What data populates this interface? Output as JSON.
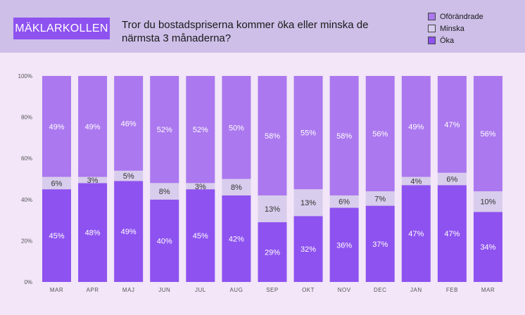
{
  "header": {
    "brand": "MÄKLARKOLLEN",
    "title": "Tror du bostadspriserna kommer öka eller minska de närmsta 3 månaderna?"
  },
  "chart_data": {
    "type": "bar",
    "stacked": true,
    "title": "Tror du bostadspriserna kommer öka eller minska de närmsta 3 månaderna?",
    "categories": [
      "MAR",
      "APR",
      "MAJ",
      "JUN",
      "JUL",
      "AUG",
      "SEP",
      "OKT",
      "NOV",
      "DEC",
      "JAN",
      "FEB",
      "MAR"
    ],
    "yticks": [
      "0%",
      "20%",
      "40%",
      "60%",
      "80%",
      "100%"
    ],
    "ylim": [
      0,
      100
    ],
    "series": [
      {
        "name": "Öka",
        "color": "#8e52f0",
        "label_color": "#ffffff",
        "values": [
          45,
          48,
          49,
          40,
          45,
          42,
          29,
          32,
          36,
          37,
          47,
          47,
          34
        ],
        "labels": [
          "45%",
          "48%",
          "49%",
          "40%",
          "45%",
          "42%",
          "29%",
          "32%",
          "36%",
          "37%",
          "47%",
          "47%",
          "34%"
        ]
      },
      {
        "name": "Minska",
        "color": "#d8cdec",
        "label_color": "#333333",
        "values": [
          6,
          3,
          5,
          8,
          3,
          8,
          13,
          13,
          6,
          7,
          4,
          6,
          10
        ],
        "labels": [
          "6%",
          "3%",
          "5%",
          "8%",
          "3%",
          "8%",
          "13%",
          "13%",
          "6%",
          "7%",
          "4%",
          "6%",
          "10%"
        ]
      },
      {
        "name": "Oförändrade",
        "color": "#ab78ef",
        "label_color": "#ffffff",
        "values": [
          49,
          49,
          46,
          52,
          52,
          50,
          58,
          55,
          58,
          56,
          49,
          47,
          56
        ],
        "labels": [
          "49%",
          "49%",
          "46%",
          "52%",
          "52%",
          "50%",
          "58%",
          "55%",
          "58%",
          "56%",
          "49%",
          "47%",
          "56%"
        ]
      }
    ],
    "legend": [
      "Oförändrade",
      "Minska",
      "Öka"
    ],
    "legend_position": "top-right"
  }
}
